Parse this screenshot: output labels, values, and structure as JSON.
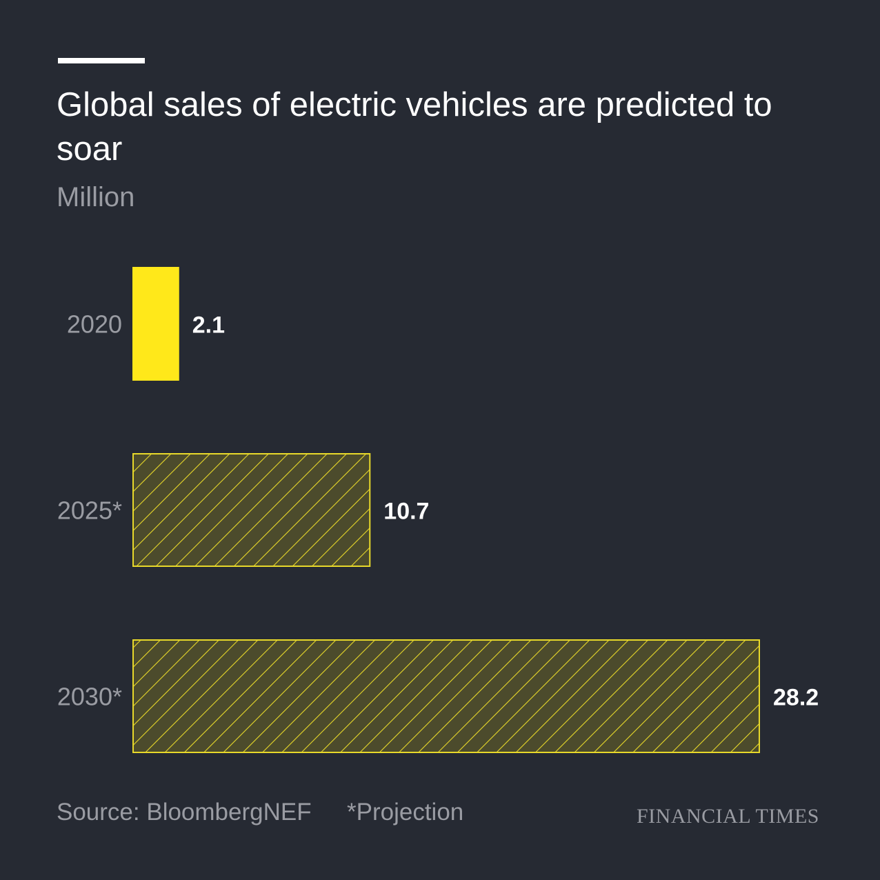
{
  "title": "Global sales of electric vehicles are predicted to soar",
  "subtitle": "Million",
  "footer": {
    "source": "Source: BloombergNEF",
    "note": "*Projection",
    "brand": "FINANCIAL TIMES"
  },
  "colors": {
    "background": "#262a33",
    "actual_bar": "#ffe81a",
    "projection_fill": "#4c4b2c",
    "projection_stroke": "#e8d92a",
    "category_label": "#9a9ca3",
    "value_label": "#ffffff"
  },
  "chart_data": {
    "type": "bar",
    "orientation": "horizontal",
    "categories": [
      "2020",
      "2025*",
      "2030*"
    ],
    "values": [
      2.1,
      10.7,
      28.2
    ],
    "value_labels": [
      "2.1",
      "10.7",
      "28.2"
    ],
    "projected": [
      false,
      true,
      true
    ],
    "ylabel": "Million",
    "xlim": [
      0,
      28.2
    ],
    "grid": false
  }
}
